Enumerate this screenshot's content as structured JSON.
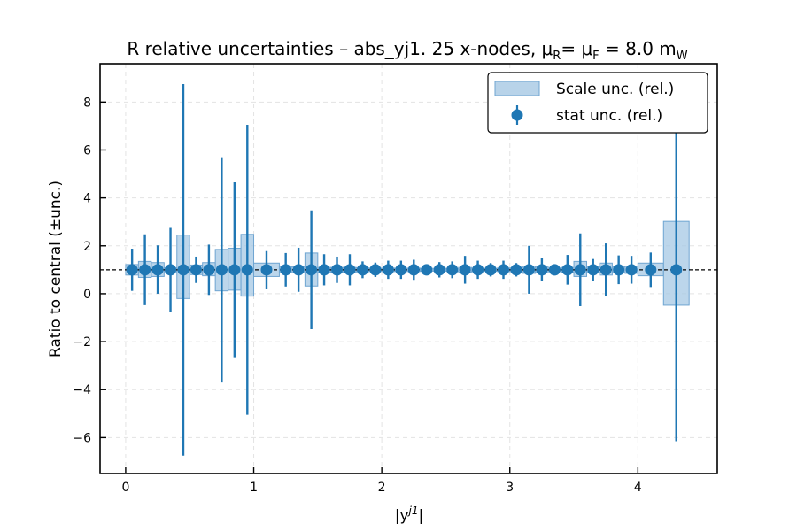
{
  "chart_data": {
    "type": "scatter",
    "title_main": "R relative uncertainties  –  abs_yj1. 25 x-nodes, μ",
    "title_sub_r": "R",
    "title_mid": "= μ",
    "title_sub_f": "F",
    "title_end": " = 8.0 m",
    "title_sub_w": "W",
    "xlabel_base": "|y",
    "xlabel_sup": "j1",
    "xlabel_end": "|",
    "ylabel": "Ratio to central (±unc.)",
    "xlim": [
      -0.2,
      4.62
    ],
    "ylim": [
      -7.5,
      9.6
    ],
    "xticks": [
      0,
      1,
      2,
      3,
      4
    ],
    "yticks": [
      -6,
      -4,
      -2,
      0,
      2,
      4,
      6,
      8
    ],
    "reference_line": 1.0,
    "grid": true,
    "legend": {
      "placement": "top-right",
      "entries": [
        {
          "label": "Scale unc. (rel.)",
          "kind": "box"
        },
        {
          "label": "stat unc. (rel.)",
          "kind": "point"
        }
      ]
    },
    "colors": {
      "point": "#1f77b4",
      "band_fill": "#a6c8e4",
      "band_edge": "#6fa5d1"
    },
    "points": [
      {
        "x": 0.05,
        "y": 1.0,
        "stat_lo": 0.12,
        "stat_hi": 1.88,
        "band_lo": 0.78,
        "band_hi": 1.22,
        "band_xl": 0.0,
        "band_xr": 0.1
      },
      {
        "x": 0.15,
        "y": 1.0,
        "stat_lo": -0.48,
        "stat_hi": 2.48,
        "band_lo": 0.68,
        "band_hi": 1.35,
        "band_xl": 0.1,
        "band_xr": 0.2
      },
      {
        "x": 0.25,
        "y": 1.0,
        "stat_lo": 0.0,
        "stat_hi": 2.02,
        "band_lo": 0.72,
        "band_hi": 1.3,
        "band_xl": 0.2,
        "band_xr": 0.3
      },
      {
        "x": 0.35,
        "y": 1.0,
        "stat_lo": -0.75,
        "stat_hi": 2.75,
        "band_lo": 0.92,
        "band_hi": 1.08,
        "band_xl": 0.3,
        "band_xr": 0.4
      },
      {
        "x": 0.45,
        "y": 1.0,
        "stat_lo": -6.75,
        "stat_hi": 8.75,
        "band_lo": -0.2,
        "band_hi": 2.45,
        "band_xl": 0.4,
        "band_xr": 0.5
      },
      {
        "x": 0.55,
        "y": 1.0,
        "stat_lo": 0.45,
        "stat_hi": 1.55,
        "band_lo": 0.8,
        "band_hi": 1.2,
        "band_xl": 0.5,
        "band_xr": 0.6
      },
      {
        "x": 0.65,
        "y": 1.0,
        "stat_lo": -0.05,
        "stat_hi": 2.05,
        "band_lo": 0.75,
        "band_hi": 1.3,
        "band_xl": 0.6,
        "band_xr": 0.7
      },
      {
        "x": 0.75,
        "y": 1.0,
        "stat_lo": -3.7,
        "stat_hi": 5.7,
        "band_lo": 0.12,
        "band_hi": 1.85,
        "band_xl": 0.7,
        "band_xr": 0.8
      },
      {
        "x": 0.85,
        "y": 1.0,
        "stat_lo": -2.65,
        "stat_hi": 4.65,
        "band_lo": 0.15,
        "band_hi": 1.9,
        "band_xl": 0.8,
        "band_xr": 0.9
      },
      {
        "x": 0.95,
        "y": 1.0,
        "stat_lo": -5.05,
        "stat_hi": 7.05,
        "band_lo": -0.1,
        "band_hi": 2.48,
        "band_xl": 0.9,
        "band_xr": 1.0
      },
      {
        "x": 1.1,
        "y": 1.0,
        "stat_lo": 0.22,
        "stat_hi": 1.78,
        "band_lo": 0.72,
        "band_hi": 1.28,
        "band_xl": 1.0,
        "band_xr": 1.2
      },
      {
        "x": 1.25,
        "y": 1.0,
        "stat_lo": 0.3,
        "stat_hi": 1.7,
        "band_lo": 0.88,
        "band_hi": 1.12,
        "band_xl": 1.2,
        "band_xr": 1.3
      },
      {
        "x": 1.35,
        "y": 1.0,
        "stat_lo": 0.08,
        "stat_hi": 1.92,
        "band_lo": 0.88,
        "band_hi": 1.12,
        "band_xl": 1.3,
        "band_xr": 1.4
      },
      {
        "x": 1.45,
        "y": 1.0,
        "stat_lo": -1.48,
        "stat_hi": 3.48,
        "band_lo": 0.32,
        "band_hi": 1.7,
        "band_xl": 1.4,
        "band_xr": 1.5
      },
      {
        "x": 1.55,
        "y": 1.0,
        "stat_lo": 0.35,
        "stat_hi": 1.65,
        "band_lo": 0.9,
        "band_hi": 1.1,
        "band_xl": 1.5,
        "band_xr": 1.6
      },
      {
        "x": 1.65,
        "y": 1.0,
        "stat_lo": 0.45,
        "stat_hi": 1.55,
        "band_lo": 0.9,
        "band_hi": 1.1,
        "band_xl": 1.6,
        "band_xr": 1.7
      },
      {
        "x": 1.75,
        "y": 1.0,
        "stat_lo": 0.35,
        "stat_hi": 1.65,
        "band_lo": 0.9,
        "band_hi": 1.1,
        "band_xl": 1.7,
        "band_xr": 1.8
      },
      {
        "x": 1.85,
        "y": 1.0,
        "stat_lo": 0.65,
        "stat_hi": 1.35,
        "band_lo": 0.92,
        "band_hi": 1.08,
        "band_xl": 1.8,
        "band_xr": 1.9
      },
      {
        "x": 1.95,
        "y": 1.0,
        "stat_lo": 0.7,
        "stat_hi": 1.3,
        "band_lo": 0.93,
        "band_hi": 1.07,
        "band_xl": 1.9,
        "band_xr": 2.0
      },
      {
        "x": 2.05,
        "y": 1.0,
        "stat_lo": 0.62,
        "stat_hi": 1.38,
        "band_lo": 0.93,
        "band_hi": 1.07,
        "band_xl": 2.0,
        "band_xr": 2.1
      },
      {
        "x": 2.15,
        "y": 1.0,
        "stat_lo": 0.62,
        "stat_hi": 1.38,
        "band_lo": 0.93,
        "band_hi": 1.07,
        "band_xl": 2.1,
        "band_xr": 2.2
      },
      {
        "x": 2.25,
        "y": 1.0,
        "stat_lo": 0.58,
        "stat_hi": 1.42,
        "band_lo": 0.93,
        "band_hi": 1.07,
        "band_xl": 2.2,
        "band_xr": 2.3
      },
      {
        "x": 2.35,
        "y": 1.0,
        "stat_lo": 0.78,
        "stat_hi": 1.22,
        "band_lo": 0.94,
        "band_hi": 1.06,
        "band_xl": 2.3,
        "band_xr": 2.4
      },
      {
        "x": 2.45,
        "y": 1.0,
        "stat_lo": 0.68,
        "stat_hi": 1.32,
        "band_lo": 0.94,
        "band_hi": 1.06,
        "band_xl": 2.4,
        "band_xr": 2.5
      },
      {
        "x": 2.55,
        "y": 1.0,
        "stat_lo": 0.65,
        "stat_hi": 1.35,
        "band_lo": 0.94,
        "band_hi": 1.06,
        "band_xl": 2.5,
        "band_xr": 2.6
      },
      {
        "x": 2.65,
        "y": 1.0,
        "stat_lo": 0.42,
        "stat_hi": 1.58,
        "band_lo": 0.9,
        "band_hi": 1.1,
        "band_xl": 2.6,
        "band_xr": 2.7
      },
      {
        "x": 2.75,
        "y": 1.0,
        "stat_lo": 0.62,
        "stat_hi": 1.38,
        "band_lo": 0.93,
        "band_hi": 1.07,
        "band_xl": 2.7,
        "band_xr": 2.8
      },
      {
        "x": 2.85,
        "y": 1.0,
        "stat_lo": 0.72,
        "stat_hi": 1.28,
        "band_lo": 0.94,
        "band_hi": 1.06,
        "band_xl": 2.8,
        "band_xr": 2.9
      },
      {
        "x": 2.95,
        "y": 1.0,
        "stat_lo": 0.62,
        "stat_hi": 1.38,
        "band_lo": 0.93,
        "band_hi": 1.07,
        "band_xl": 2.9,
        "band_xr": 3.0
      },
      {
        "x": 3.05,
        "y": 1.0,
        "stat_lo": 0.72,
        "stat_hi": 1.28,
        "band_lo": 0.92,
        "band_hi": 1.08,
        "band_xl": 3.0,
        "band_xr": 3.1
      },
      {
        "x": 3.15,
        "y": 1.0,
        "stat_lo": 0.0,
        "stat_hi": 2.0,
        "band_lo": 0.85,
        "band_hi": 1.15,
        "band_xl": 3.1,
        "band_xr": 3.2
      },
      {
        "x": 3.25,
        "y": 1.0,
        "stat_lo": 0.52,
        "stat_hi": 1.48,
        "band_lo": 0.88,
        "band_hi": 1.12,
        "band_xl": 3.2,
        "band_xr": 3.3
      },
      {
        "x": 3.35,
        "y": 1.0,
        "stat_lo": 0.78,
        "stat_hi": 1.22,
        "band_lo": 0.93,
        "band_hi": 1.07,
        "band_xl": 3.3,
        "band_xr": 3.4
      },
      {
        "x": 3.45,
        "y": 1.0,
        "stat_lo": 0.38,
        "stat_hi": 1.62,
        "band_lo": 0.9,
        "band_hi": 1.1,
        "band_xl": 3.4,
        "band_xr": 3.5
      },
      {
        "x": 3.55,
        "y": 1.0,
        "stat_lo": -0.52,
        "stat_hi": 2.52,
        "band_lo": 0.72,
        "band_hi": 1.35,
        "band_xl": 3.5,
        "band_xr": 3.6
      },
      {
        "x": 3.65,
        "y": 1.0,
        "stat_lo": 0.55,
        "stat_hi": 1.45,
        "band_lo": 0.88,
        "band_hi": 1.12,
        "band_xl": 3.6,
        "band_xr": 3.7
      },
      {
        "x": 3.75,
        "y": 1.0,
        "stat_lo": -0.1,
        "stat_hi": 2.1,
        "band_lo": 0.78,
        "band_hi": 1.28,
        "band_xl": 3.7,
        "band_xr": 3.8
      },
      {
        "x": 3.85,
        "y": 1.0,
        "stat_lo": 0.4,
        "stat_hi": 1.6,
        "band_lo": 0.88,
        "band_hi": 1.12,
        "band_xl": 3.8,
        "band_xr": 3.9
      },
      {
        "x": 3.95,
        "y": 1.0,
        "stat_lo": 0.42,
        "stat_hi": 1.58,
        "band_lo": 0.85,
        "band_hi": 1.15,
        "band_xl": 3.9,
        "band_xr": 4.0
      },
      {
        "x": 4.1,
        "y": 1.0,
        "stat_lo": 0.28,
        "stat_hi": 1.72,
        "band_lo": 0.75,
        "band_hi": 1.28,
        "band_xl": 4.0,
        "band_xr": 4.2
      },
      {
        "x": 4.3,
        "y": 1.0,
        "stat_lo": -6.15,
        "stat_hi": 8.25,
        "band_lo": -0.48,
        "band_hi": 3.02,
        "band_xl": 4.2,
        "band_xr": 4.4
      }
    ]
  }
}
